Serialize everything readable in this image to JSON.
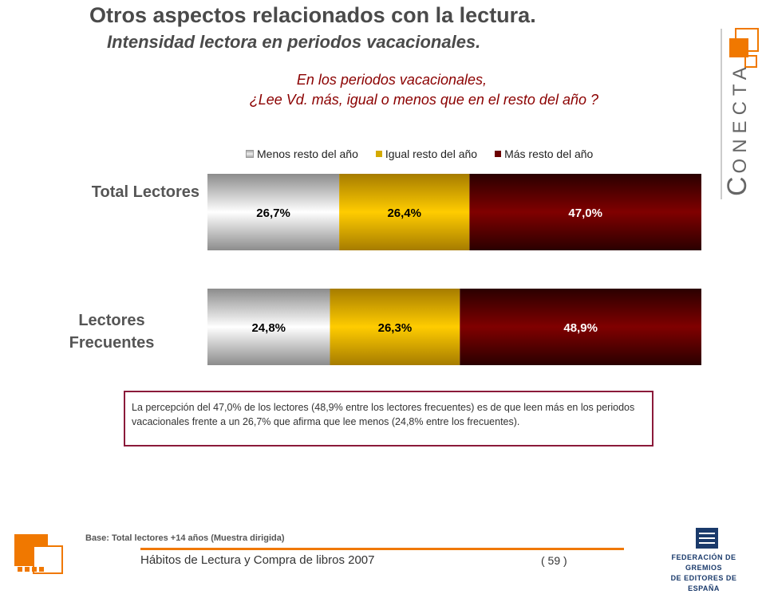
{
  "header": {
    "title": "Otros aspectos relacionados con la lectura.",
    "subtitle": "Intensidad lectora en periodos vacacionales."
  },
  "question": {
    "line1": "En los periodos vacacionales,",
    "line2": "¿Lee Vd. más, igual o menos que en el resto del año ?"
  },
  "legend": {
    "less": "Menos resto del año",
    "same": "Igual resto del año",
    "more": "Más resto del año"
  },
  "row_labels": {
    "total": "Total Lectores",
    "frequent_line1": "Lectores",
    "frequent_line2": "Frecuentes"
  },
  "chart_data": {
    "type": "bar",
    "orientation": "horizontal",
    "stacked": true,
    "percent": true,
    "categories": [
      "Total Lectores",
      "Lectores Frecuentes"
    ],
    "series": [
      {
        "name": "Menos resto del año",
        "values": [
          26.7,
          24.8
        ],
        "labels": [
          "26,7%",
          "24,8%"
        ]
      },
      {
        "name": "Igual resto del año",
        "values": [
          26.4,
          26.3
        ],
        "labels": [
          "26,4%",
          "26,3%"
        ]
      },
      {
        "name": "Más resto del año",
        "values": [
          47.0,
          48.9
        ],
        "labels": [
          "47,0%",
          "48,9%"
        ]
      }
    ],
    "legend": "top",
    "colors": {
      "less": "#d9d9d9",
      "same": "#e6b800",
      "more": "#7a0000"
    }
  },
  "note": {
    "text": "La percepción del 47,0% de los lectores (48,9% entre los lectores frecuentes) es de que leen más en los periodos vacacionales frente a un 26,7% que afirma que lee menos (24,8% entre los frecuentes)."
  },
  "footer": {
    "base": "Base: Total lectores +14 años (Muestra dirigida)",
    "report": "Hábitos de Lectura y Compra de libros 2007",
    "page": "( 59 )",
    "org_line1": "FEDERACIÓN DE GREMIOS",
    "org_line2": "DE EDITORES DE ESPAÑA"
  },
  "brand": {
    "initial": "C",
    "rest": "ONECTA",
    "accent_color": "#f07800"
  }
}
